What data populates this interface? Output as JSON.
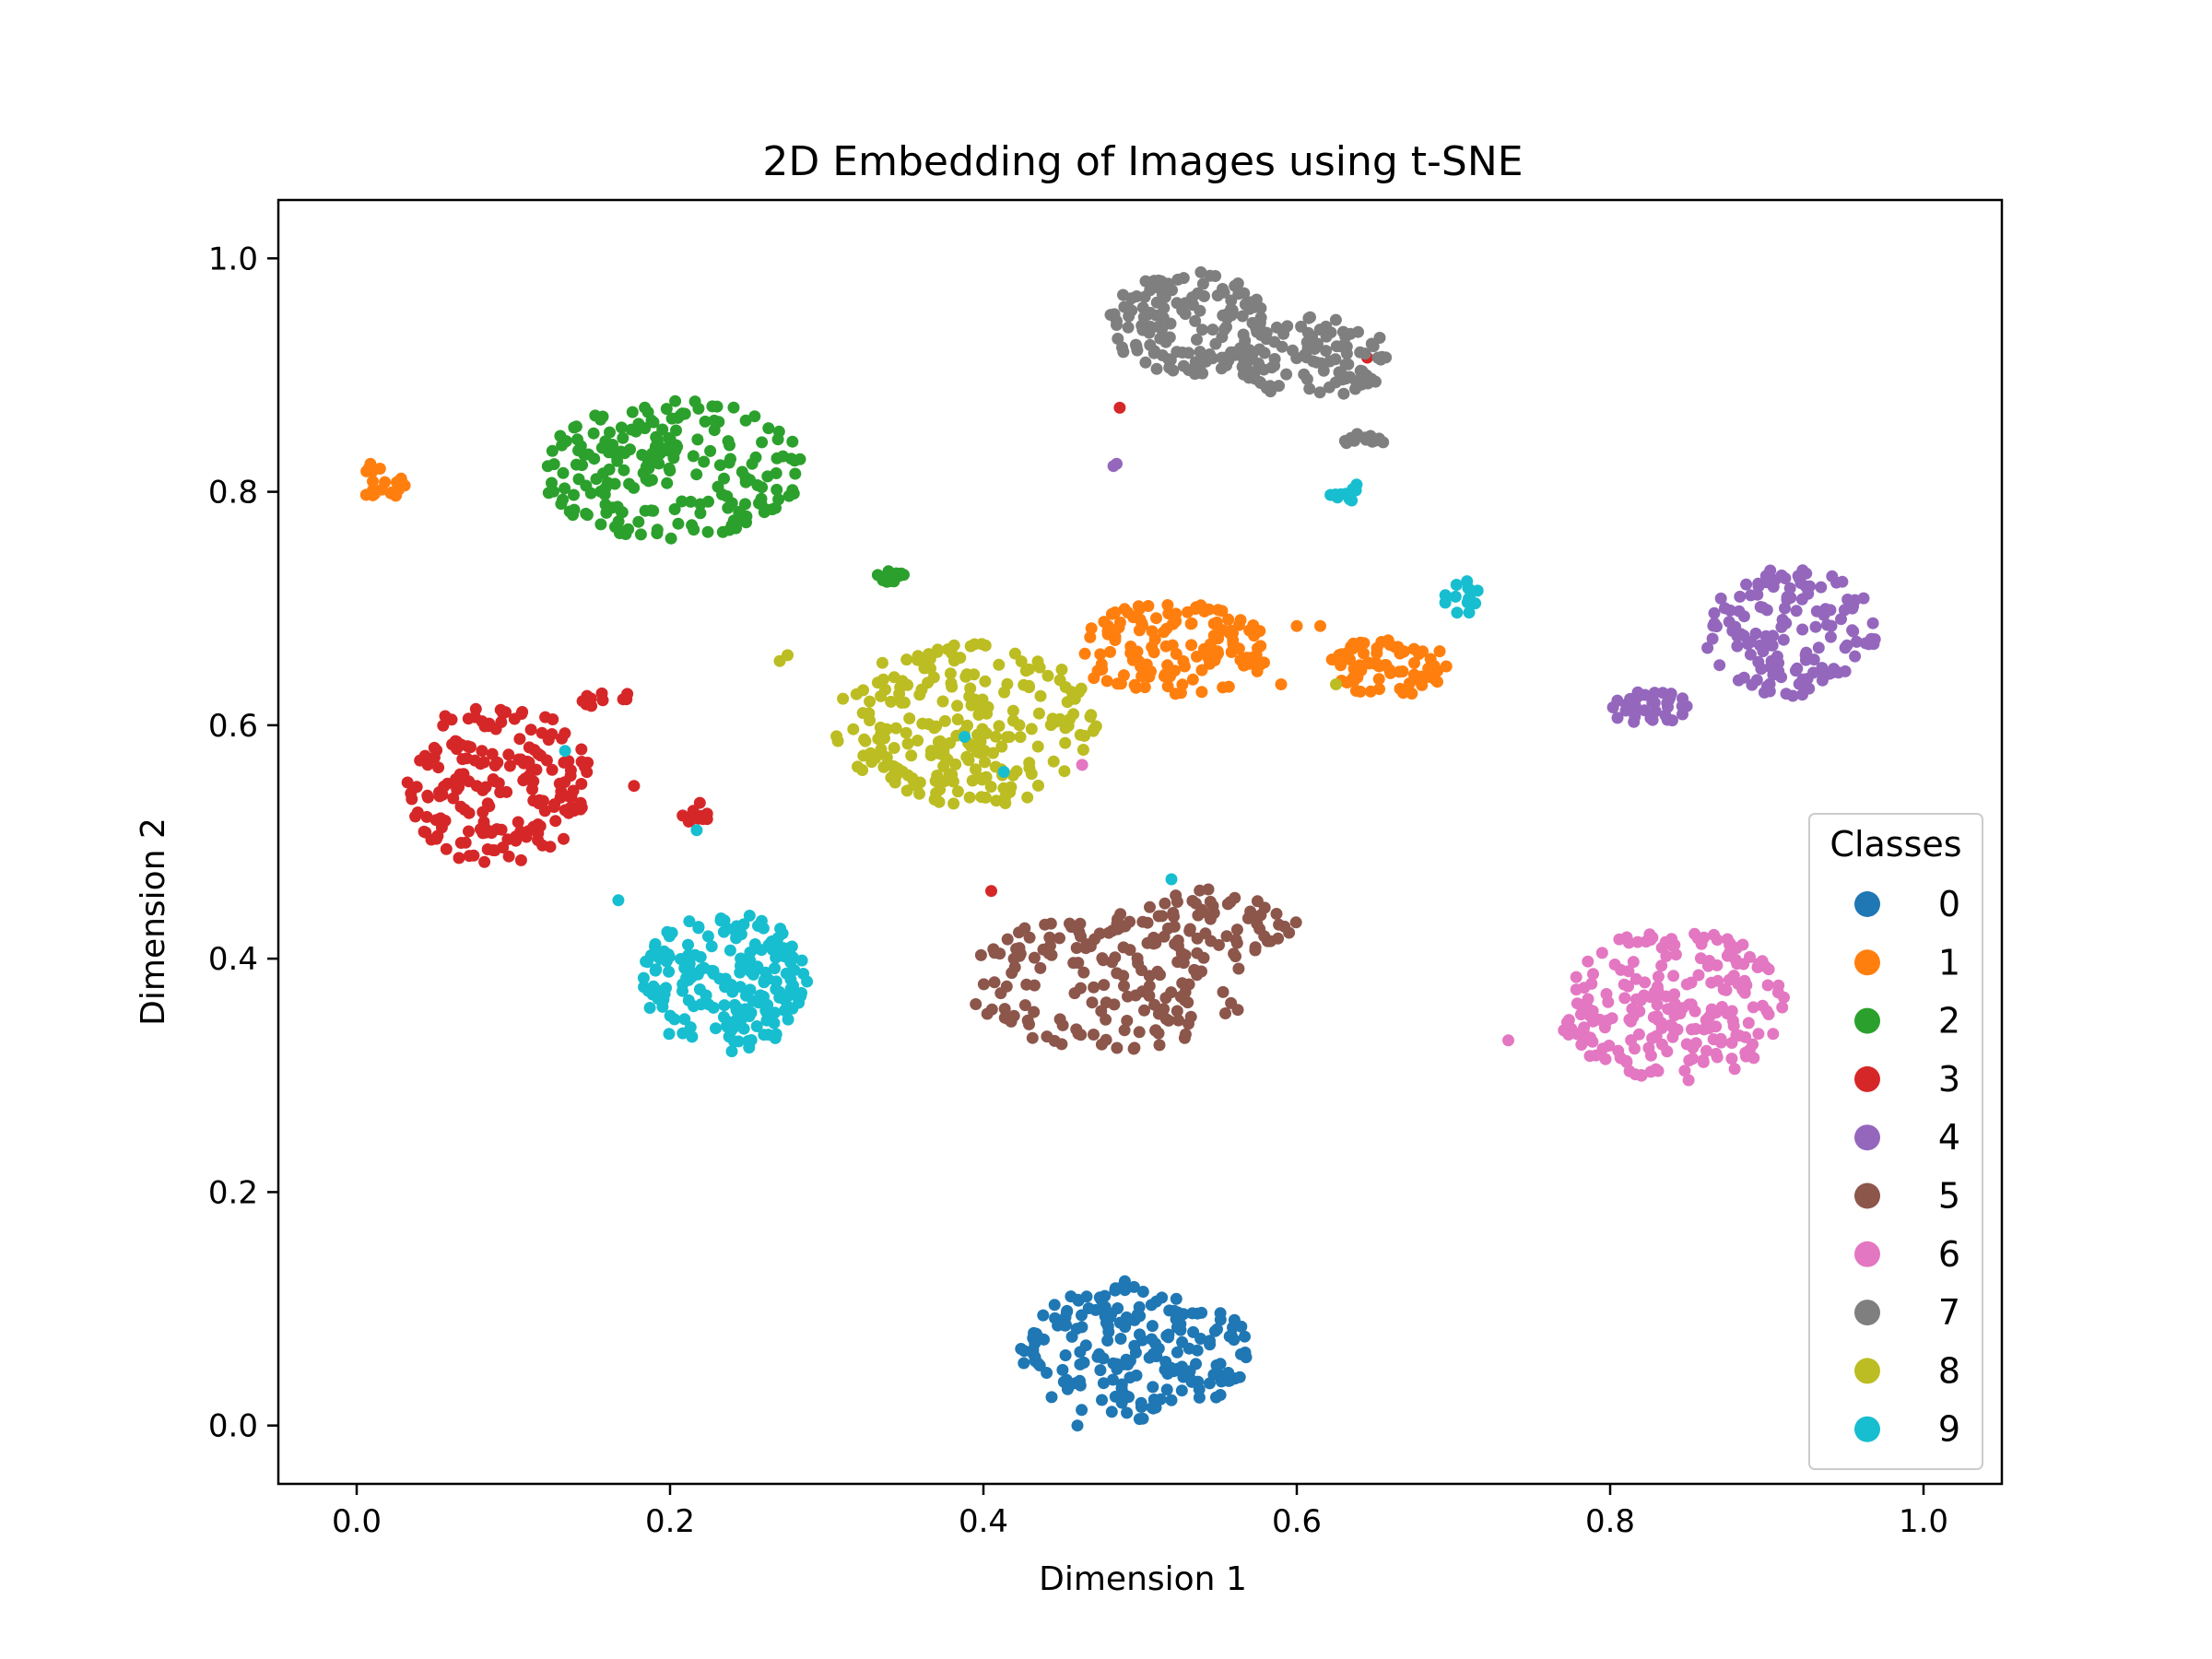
{
  "chart_data": {
    "type": "scatter",
    "title": "2D Embedding of Images using t-SNE",
    "xlabel": "Dimension 1",
    "ylabel": "Dimension 2",
    "xlim": [
      -0.05,
      1.05
    ],
    "ylim": [
      -0.05,
      1.05
    ],
    "xticks": [
      {
        "value": 0.0,
        "label": "0.0"
      },
      {
        "value": 0.2,
        "label": "0.2"
      },
      {
        "value": 0.4,
        "label": "0.4"
      },
      {
        "value": 0.6,
        "label": "0.6"
      },
      {
        "value": 0.8,
        "label": "0.8"
      },
      {
        "value": 1.0,
        "label": "1.0"
      }
    ],
    "yticks": [
      {
        "value": 0.0,
        "label": "0.0"
      },
      {
        "value": 0.2,
        "label": "0.2"
      },
      {
        "value": 0.4,
        "label": "0.4"
      },
      {
        "value": 0.6,
        "label": "0.6"
      },
      {
        "value": 0.8,
        "label": "0.8"
      },
      {
        "value": 1.0,
        "label": "1.0"
      }
    ],
    "grid": false,
    "legend": {
      "title": "Classes",
      "position": "lower-right",
      "entries": [
        "0",
        "1",
        "2",
        "3",
        "4",
        "5",
        "6",
        "7",
        "8",
        "9"
      ]
    },
    "series": [
      {
        "name": "0",
        "color": "#1f77b4",
        "clusters": [
          {
            "cx": 0.495,
            "cy": 0.065,
            "rx": 0.075,
            "ry": 0.06,
            "n": 200
          }
        ],
        "points": [
          [
            0.46,
            0.0
          ]
        ]
      },
      {
        "name": "1",
        "color": "#ff7f0e",
        "clusters": [
          {
            "cx": 0.015,
            "cy": 0.81,
            "rx": 0.018,
            "ry": 0.02,
            "n": 22
          },
          {
            "cx": 0.52,
            "cy": 0.665,
            "rx": 0.065,
            "ry": 0.04,
            "n": 140
          },
          {
            "cx": 0.66,
            "cy": 0.65,
            "rx": 0.04,
            "ry": 0.025,
            "n": 70
          }
        ],
        "points": [
          [
            0.59,
            0.635
          ],
          [
            0.6,
            0.685
          ],
          [
            0.615,
            0.685
          ]
        ]
      },
      {
        "name": "2",
        "color": "#2ca02c",
        "clusters": [
          {
            "cx": 0.2,
            "cy": 0.82,
            "rx": 0.085,
            "ry": 0.06,
            "n": 210
          },
          {
            "cx": 0.34,
            "cy": 0.727,
            "rx": 0.013,
            "ry": 0.005,
            "n": 12
          }
        ],
        "points": []
      },
      {
        "name": "3",
        "color": "#d62728",
        "clusters": [
          {
            "cx": 0.09,
            "cy": 0.55,
            "rx": 0.06,
            "ry": 0.07,
            "n": 190
          },
          {
            "cx": 0.16,
            "cy": 0.622,
            "rx": 0.018,
            "ry": 0.008,
            "n": 12
          },
          {
            "cx": 0.217,
            "cy": 0.525,
            "rx": 0.01,
            "ry": 0.01,
            "n": 10
          }
        ],
        "points": [
          [
            0.487,
            0.872
          ],
          [
            0.645,
            0.915
          ],
          [
            0.405,
            0.458
          ],
          [
            0.177,
            0.548
          ]
        ]
      },
      {
        "name": "4",
        "color": "#9467bd",
        "clusters": [
          {
            "cx": 0.915,
            "cy": 0.68,
            "rx": 0.055,
            "ry": 0.055,
            "n": 140
          },
          {
            "cx": 0.825,
            "cy": 0.615,
            "rx": 0.025,
            "ry": 0.015,
            "n": 35
          }
        ],
        "points": [
          [
            0.483,
            0.822
          ],
          [
            0.485,
            0.824
          ]
        ]
      },
      {
        "name": "5",
        "color": "#8c564b",
        "clusters": [
          {
            "cx": 0.48,
            "cy": 0.38,
            "rx": 0.09,
            "ry": 0.06,
            "n": 160
          },
          {
            "cx": 0.55,
            "cy": 0.43,
            "rx": 0.05,
            "ry": 0.03,
            "n": 60
          }
        ],
        "points": [
          [
            0.82,
            0.3
          ]
        ]
      },
      {
        "name": "6",
        "color": "#e377c2",
        "clusters": [
          {
            "cx": 0.84,
            "cy": 0.36,
            "rx": 0.075,
            "ry": 0.065,
            "n": 220
          }
        ],
        "points": [
          [
            0.463,
            0.566
          ],
          [
            0.735,
            0.33
          ]
        ]
      },
      {
        "name": "7",
        "color": "#7f7f7f",
        "clusters": [
          {
            "cx": 0.53,
            "cy": 0.945,
            "rx": 0.05,
            "ry": 0.045,
            "n": 140
          },
          {
            "cx": 0.61,
            "cy": 0.915,
            "rx": 0.05,
            "ry": 0.035,
            "n": 110
          },
          {
            "cx": 0.643,
            "cy": 0.845,
            "rx": 0.015,
            "ry": 0.005,
            "n": 12
          }
        ],
        "points": []
      },
      {
        "name": "8",
        "color": "#bcbd22",
        "clusters": [
          {
            "cx": 0.39,
            "cy": 0.6,
            "rx": 0.085,
            "ry": 0.07,
            "n": 230
          }
        ],
        "points": [
          [
            0.27,
            0.655
          ],
          [
            0.275,
            0.66
          ],
          [
            0.445,
            0.605
          ],
          [
            0.455,
            0.605
          ],
          [
            0.625,
            0.635
          ]
        ]
      },
      {
        "name": "9",
        "color": "#17becf",
        "clusters": [
          {
            "cx": 0.235,
            "cy": 0.38,
            "rx": 0.055,
            "ry": 0.06,
            "n": 190
          },
          {
            "cx": 0.63,
            "cy": 0.8,
            "rx": 0.01,
            "ry": 0.012,
            "n": 12
          },
          {
            "cx": 0.705,
            "cy": 0.71,
            "rx": 0.012,
            "ry": 0.015,
            "n": 15
          }
        ],
        "points": [
          [
            0.133,
            0.578
          ],
          [
            0.167,
            0.45
          ],
          [
            0.217,
            0.51
          ],
          [
            0.388,
            0.59
          ],
          [
            0.413,
            0.56
          ],
          [
            0.52,
            0.468
          ]
        ]
      }
    ]
  }
}
